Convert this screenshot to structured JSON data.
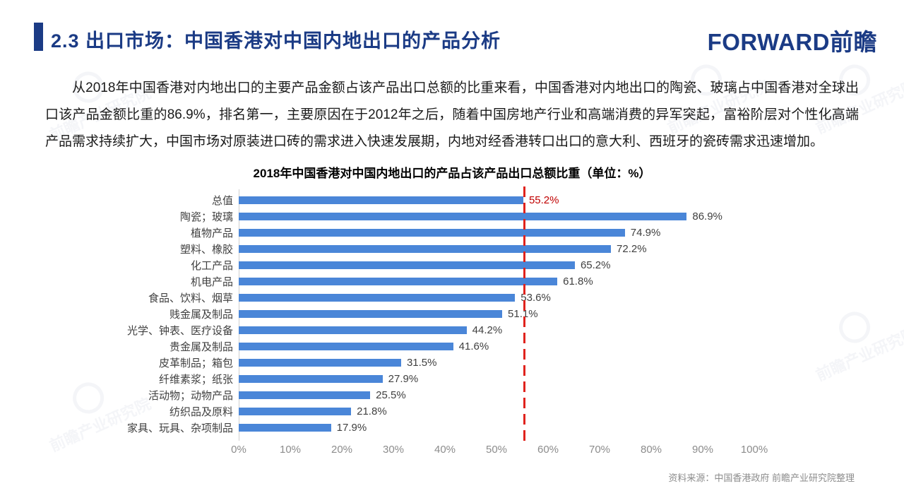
{
  "header": {
    "title": "2.3 出口市场：中国香港对中国内地出口的产品分析",
    "logo_text": "FORWARD前瞻"
  },
  "body_paragraph": "从2018年中国香港对内地出口的主要产品金额占该产品出口总额的比重来看，中国香港对内地出口的陶瓷、玻璃占中国香港对全球出口该产品金额比重的86.9%，排名第一，主要原因在于2012年之后，随着中国房地产行业和高端消费的异军突起，富裕阶层对个性化高端产品需求持续扩大，中国市场对原装进口砖的需求进入快速发展期，内地对经香港转口出口的意大利、西班牙的瓷砖需求迅速增加。",
  "chart_data": {
    "type": "bar",
    "orientation": "horizontal",
    "title": "2018年中国香港对中国内地出口的产品占该产品出口总额比重（单位：%）",
    "categories": [
      "总值",
      "陶瓷；玻璃",
      "植物产品",
      "塑料、橡胶",
      "化工产品",
      "机电产品",
      "食品、饮料、烟草",
      "贱金属及制品",
      "光学、钟表、医疗设备",
      "贵金属及制品",
      "皮革制品；箱包",
      "纤维素浆；纸张",
      "活动物；动物产品",
      "纺织品及原料",
      "家具、玩具、杂项制品"
    ],
    "values": [
      55.2,
      86.9,
      74.9,
      72.2,
      65.2,
      61.8,
      53.6,
      51.1,
      44.2,
      41.6,
      31.5,
      27.9,
      25.5,
      21.8,
      17.9
    ],
    "value_labels": [
      "55.2%",
      "86.9%",
      "74.9%",
      "72.2%",
      "65.2%",
      "61.8%",
      "53.6%",
      "51.1%",
      "44.2%",
      "41.6%",
      "31.5%",
      "27.9%",
      "25.5%",
      "21.8%",
      "17.9%"
    ],
    "x_ticks": [
      "0%",
      "10%",
      "20%",
      "30%",
      "40%",
      "50%",
      "60%",
      "70%",
      "80%",
      "90%",
      "100%"
    ],
    "xlim": [
      0,
      100
    ],
    "grid": false,
    "legend": false,
    "bar_color": "#4a86d8",
    "value_label_color": "#404040",
    "highlight_index": 0,
    "highlight_label_color": "#c00000",
    "reference_line": {
      "value": 55.2,
      "color": "#e0231d",
      "style": "dashed"
    }
  },
  "footer": {
    "source": "资料来源：中国香港政府  前瞻产业研究院整理"
  },
  "colors": {
    "accent": "#1b3b85",
    "bar": "#4a86d8",
    "reference": "#e0231d",
    "body_text": "#1a1a1a",
    "tick": "#8c8c8c"
  },
  "watermark": {
    "text": "前瞻产业研究院"
  }
}
